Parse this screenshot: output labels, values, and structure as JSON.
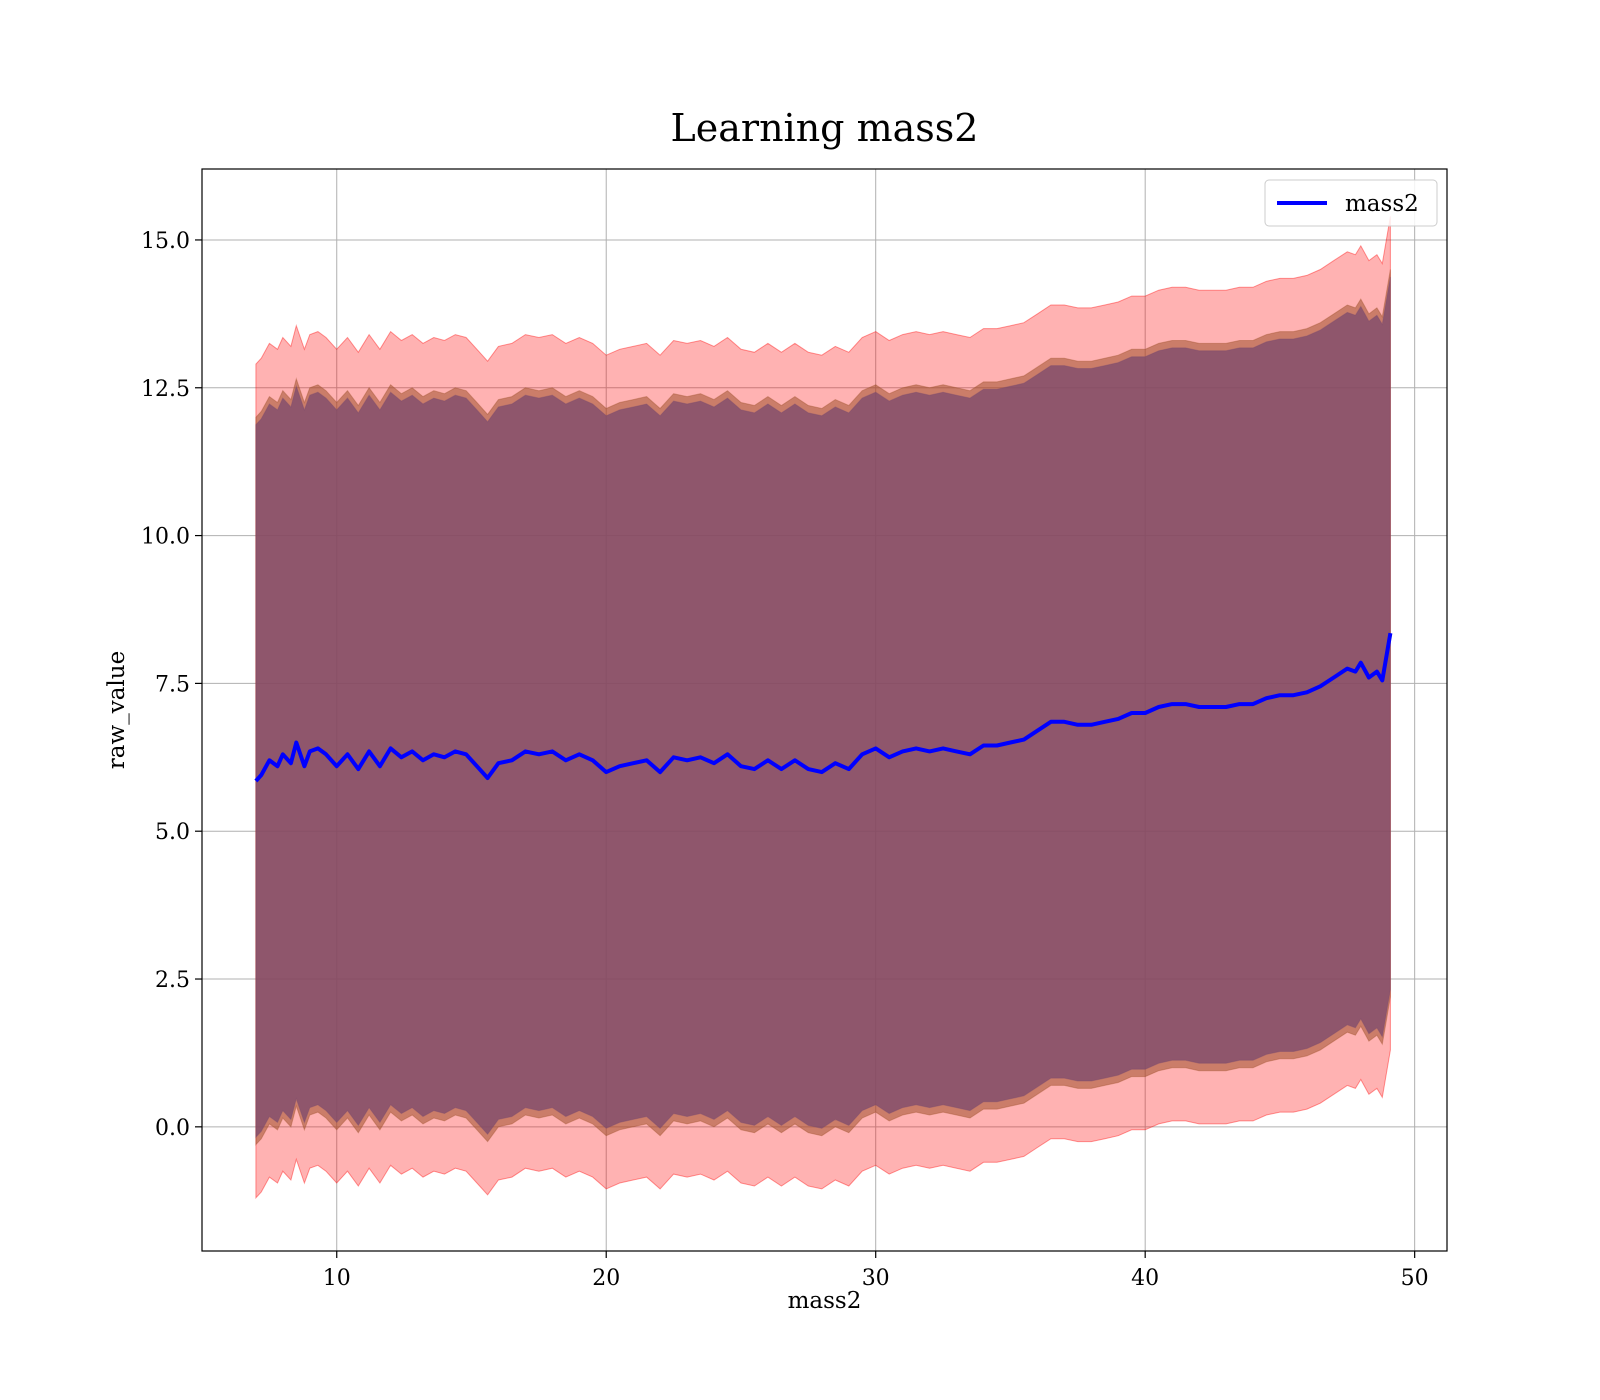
{
  "chart_data": {
    "type": "line",
    "title": "Learning mass2",
    "xlabel": "mass2",
    "ylabel": "raw_value",
    "xlim": [
      5,
      51.2
    ],
    "ylim": [
      -2.1,
      16.2
    ],
    "xticks": [
      10,
      20,
      30,
      40,
      50
    ],
    "xtick_labels": [
      "10",
      "20",
      "30",
      "40",
      "50"
    ],
    "yticks": [
      0,
      2.5,
      5,
      7.5,
      10,
      12.5,
      15
    ],
    "ytick_labels": [
      "0.0",
      "2.5",
      "5.0",
      "7.5",
      "10.0",
      "12.5",
      "15.0"
    ],
    "grid": true,
    "legend": {
      "position": "top-right",
      "entries": [
        "mass2"
      ]
    },
    "series": [
      {
        "name": "mass2",
        "color": "#0000ff",
        "x": [
          7.0,
          7.2,
          7.5,
          7.8,
          8.0,
          8.3,
          8.5,
          8.8,
          9.0,
          9.3,
          9.6,
          10.0,
          10.4,
          10.8,
          11.2,
          11.6,
          12.0,
          12.4,
          12.8,
          13.2,
          13.6,
          14.0,
          14.4,
          14.8,
          15.2,
          15.6,
          16.0,
          16.5,
          17.0,
          17.5,
          18.0,
          18.5,
          19.0,
          19.5,
          20.0,
          20.5,
          21.0,
          21.5,
          22.0,
          22.5,
          23.0,
          23.5,
          24.0,
          24.5,
          25.0,
          25.5,
          26.0,
          26.5,
          27.0,
          27.5,
          28.0,
          28.5,
          29.0,
          29.5,
          30.0,
          30.5,
          31.0,
          31.5,
          32.0,
          32.5,
          33.0,
          33.5,
          34.0,
          34.5,
          35.0,
          35.5,
          36.0,
          36.5,
          37.0,
          37.5,
          38.0,
          38.5,
          39.0,
          39.5,
          40.0,
          40.5,
          41.0,
          41.5,
          42.0,
          42.5,
          43.0,
          43.5,
          44.0,
          44.5,
          45.0,
          45.5,
          46.0,
          46.5,
          47.0,
          47.5,
          47.8,
          48.0,
          48.3,
          48.6,
          48.8,
          49.1
        ],
        "y": [
          5.85,
          5.95,
          6.2,
          6.1,
          6.3,
          6.15,
          6.5,
          6.1,
          6.35,
          6.4,
          6.3,
          6.1,
          6.3,
          6.05,
          6.35,
          6.1,
          6.4,
          6.25,
          6.35,
          6.2,
          6.3,
          6.25,
          6.35,
          6.3,
          6.1,
          5.9,
          6.15,
          6.2,
          6.35,
          6.3,
          6.35,
          6.2,
          6.3,
          6.2,
          6.0,
          6.1,
          6.15,
          6.2,
          6.0,
          6.25,
          6.2,
          6.25,
          6.15,
          6.3,
          6.1,
          6.05,
          6.2,
          6.05,
          6.2,
          6.05,
          6.0,
          6.15,
          6.05,
          6.3,
          6.4,
          6.25,
          6.35,
          6.4,
          6.35,
          6.4,
          6.35,
          6.3,
          6.45,
          6.45,
          6.5,
          6.55,
          6.7,
          6.85,
          6.85,
          6.8,
          6.8,
          6.85,
          6.9,
          7.0,
          7.0,
          7.1,
          7.15,
          7.15,
          7.1,
          7.1,
          7.1,
          7.15,
          7.15,
          7.25,
          7.3,
          7.3,
          7.35,
          7.45,
          7.6,
          7.75,
          7.7,
          7.85,
          7.6,
          7.7,
          7.55,
          8.35
        ]
      }
    ],
    "bands": [
      {
        "name": "outer",
        "color": "#ff0000",
        "opacity": 0.3,
        "width": 14.1
      },
      {
        "name": "middle",
        "color": "#a0522d",
        "opacity": 0.55,
        "width": 12.3
      },
      {
        "name": "inner",
        "color": "#7b4a6e",
        "opacity": 0.75,
        "width": 12.05
      }
    ]
  }
}
